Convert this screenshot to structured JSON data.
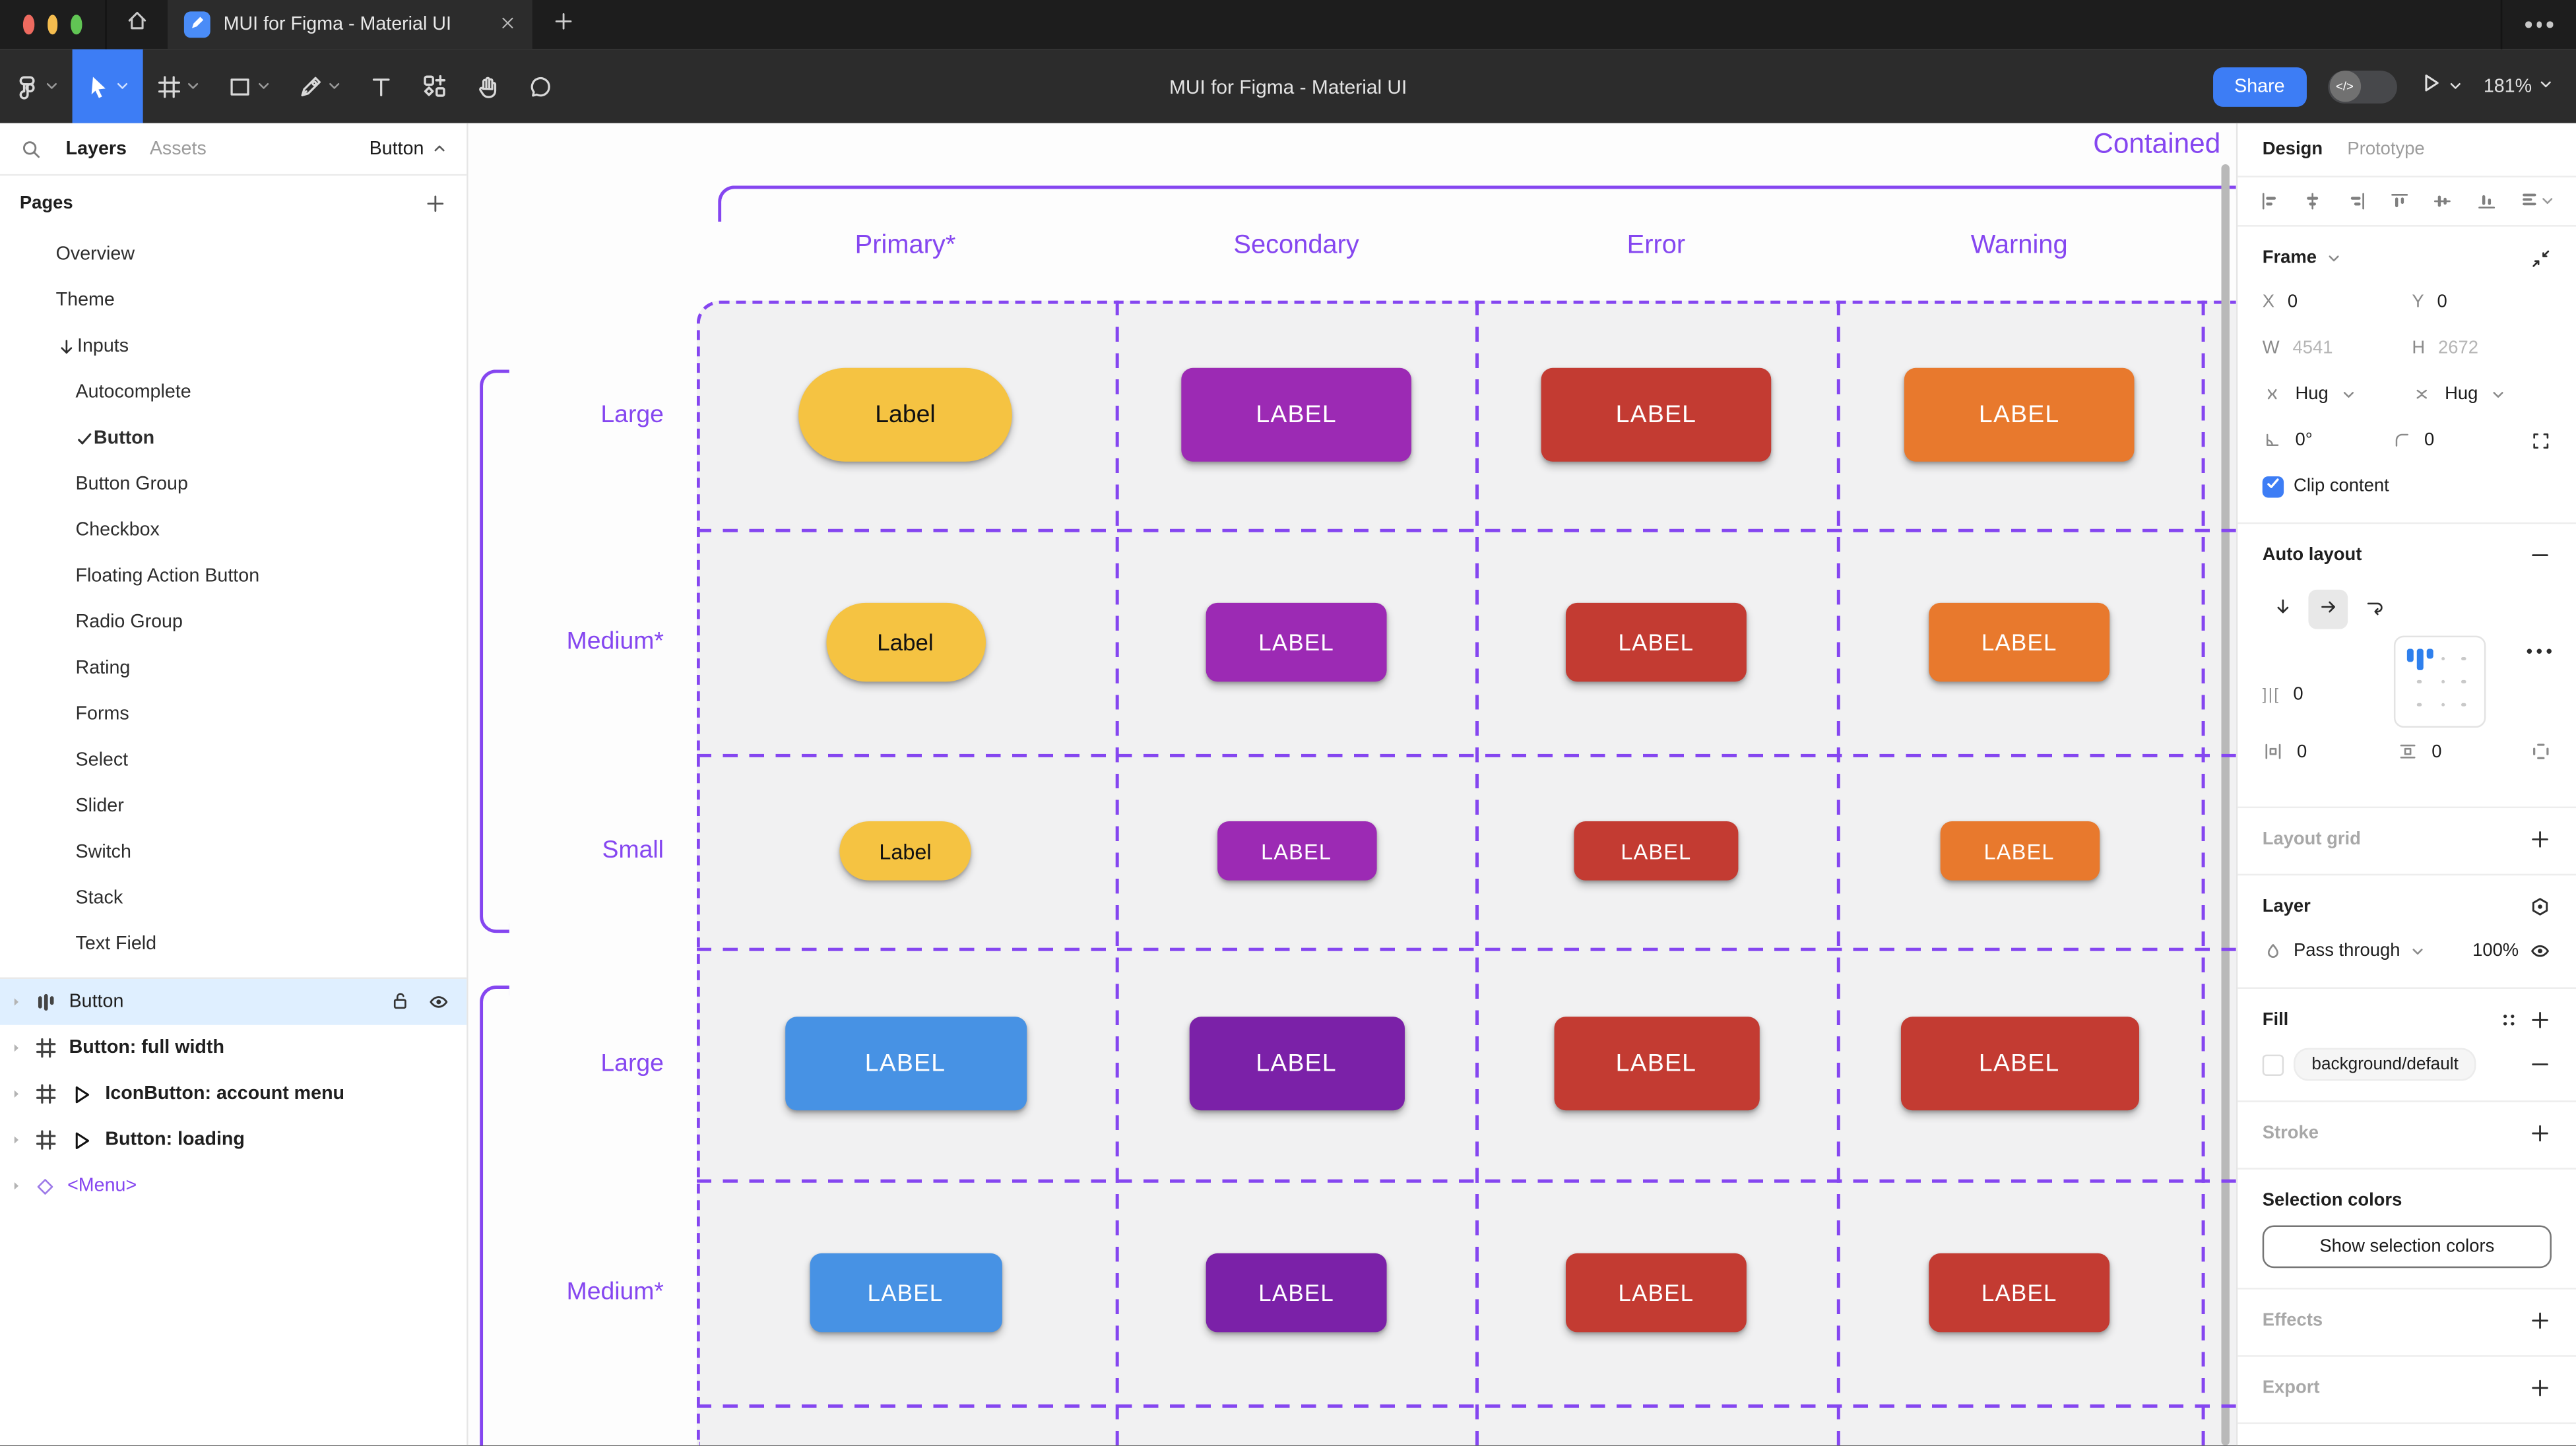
{
  "app": {
    "tab_title": "MUI for Figma - Material UI",
    "doc_title": "MUI for Figma - Material UI",
    "share_label": "Share",
    "zoom_level": "181%"
  },
  "sidebar": {
    "tab_layers": "Layers",
    "tab_assets": "Assets",
    "page_selector": "Button",
    "pages_header": "Pages",
    "pages": [
      {
        "label": "Overview",
        "level": 1
      },
      {
        "label": "Theme",
        "level": 1
      },
      {
        "label": "Inputs",
        "level": 1,
        "arrow": true
      },
      {
        "label": "Autocomplete",
        "level": 2
      },
      {
        "label": "Button",
        "level": 2,
        "checked": true,
        "active": true
      },
      {
        "label": "Button Group",
        "level": 2
      },
      {
        "label": "Checkbox",
        "level": 2
      },
      {
        "label": "Floating Action Button",
        "level": 2
      },
      {
        "label": "Radio Group",
        "level": 2
      },
      {
        "label": "Rating",
        "level": 2
      },
      {
        "label": "Forms",
        "level": 2
      },
      {
        "label": "Select",
        "level": 2
      },
      {
        "label": "Slider",
        "level": 2
      },
      {
        "label": "Switch",
        "level": 2
      },
      {
        "label": "Stack",
        "level": 2
      },
      {
        "label": "Text Field",
        "level": 2
      }
    ],
    "layers": [
      {
        "label": "Button",
        "icon": "auto-layout",
        "selected": true
      },
      {
        "label": "Button: full width",
        "icon": "frame",
        "bold": true
      },
      {
        "label": "IconButton: account menu",
        "icon": "frame",
        "bold": true,
        "play": true
      },
      {
        "label": "Button: loading",
        "icon": "frame",
        "bold": true,
        "play": true
      },
      {
        "label": "<Menu>",
        "icon": "instance",
        "instance": true
      }
    ]
  },
  "canvas": {
    "frame_label": "Contained",
    "accent_color": "#8546F0",
    "columns": [
      "Primary*",
      "Secondary",
      "Error",
      "Warning"
    ],
    "rows": [
      {
        "label": "Large",
        "buttons": [
          {
            "text": "Label",
            "bg": "#F5C342",
            "fg": "#111111",
            "pill": true,
            "w": 130,
            "h": 57
          },
          {
            "text": "LABEL",
            "bg": "#9C2AB4",
            "fg": "#FFFFFF",
            "w": 140,
            "h": 57
          },
          {
            "text": "LABEL",
            "bg": "#C33B32",
            "fg": "#FFFFFF",
            "w": 140,
            "h": 57
          },
          {
            "text": "LABEL",
            "bg": "#E8792D",
            "fg": "#FFFFFF",
            "w": 140,
            "h": 57
          }
        ]
      },
      {
        "label": "Medium*",
        "buttons": [
          {
            "text": "Label",
            "bg": "#F5C342",
            "fg": "#111111",
            "pill": true,
            "w": 97,
            "h": 48
          },
          {
            "text": "LABEL",
            "bg": "#9C2AB4",
            "fg": "#FFFFFF",
            "w": 110,
            "h": 48
          },
          {
            "text": "LABEL",
            "bg": "#C33B32",
            "fg": "#FFFFFF",
            "w": 110,
            "h": 48
          },
          {
            "text": "LABEL",
            "bg": "#E8792D",
            "fg": "#FFFFFF",
            "w": 110,
            "h": 48
          }
        ]
      },
      {
        "label": "Small",
        "buttons": [
          {
            "text": "Label",
            "bg": "#F5C342",
            "fg": "#111111",
            "pill": true,
            "w": 80,
            "h": 36
          },
          {
            "text": "LABEL",
            "bg": "#9C2AB4",
            "fg": "#FFFFFF",
            "w": 97,
            "h": 36
          },
          {
            "text": "LABEL",
            "bg": "#C33B32",
            "fg": "#FFFFFF",
            "w": 100,
            "h": 36
          },
          {
            "text": "LABEL",
            "bg": "#E8792D",
            "fg": "#FFFFFF",
            "w": 97,
            "h": 36
          }
        ]
      },
      {
        "label": "Large",
        "buttons": [
          {
            "text": "LABEL",
            "bg": "#4792E4",
            "fg": "#FFFFFF",
            "w": 147,
            "h": 57
          },
          {
            "text": "LABEL",
            "bg": "#7B21A8",
            "fg": "#FFFFFF",
            "w": 131,
            "h": 57
          },
          {
            "text": "LABEL",
            "bg": "#C33B32",
            "fg": "#FFFFFF",
            "w": 125,
            "h": 57
          },
          {
            "text": "LABEL",
            "bg": "#C33B32",
            "fg": "#FFFFFF",
            "w": 145,
            "h": 57
          }
        ]
      },
      {
        "label": "Medium*",
        "buttons": [
          {
            "text": "LABEL",
            "bg": "#4792E4",
            "fg": "#FFFFFF",
            "w": 117,
            "h": 48
          },
          {
            "text": "LABEL",
            "bg": "#7B21A8",
            "fg": "#FFFFFF",
            "w": 110,
            "h": 48
          },
          {
            "text": "LABEL",
            "bg": "#C33B32",
            "fg": "#FFFFFF",
            "w": 110,
            "h": 48
          },
          {
            "text": "LABEL",
            "bg": "#C33B32",
            "fg": "#FFFFFF",
            "w": 110,
            "h": 48
          }
        ]
      }
    ]
  },
  "panel": {
    "tab_design": "Design",
    "tab_prototype": "Prototype",
    "frame": {
      "title": "Frame",
      "x_label": "X",
      "x_value": "0",
      "y_label": "Y",
      "y_value": "0",
      "w_label": "W",
      "w_value": "4541",
      "h_label": "H",
      "h_value": "2672",
      "hug_h": "Hug",
      "hug_v": "Hug",
      "rotation": "0°",
      "corner_radius": "0",
      "clip_label": "Clip content"
    },
    "auto_layout": {
      "title": "Auto layout",
      "gap_value": "0",
      "pad_h_value": "0",
      "pad_v_value": "0"
    },
    "layout_grid": {
      "title": "Layout grid"
    },
    "layer": {
      "title": "Layer",
      "blend_mode": "Pass through",
      "opacity": "100%"
    },
    "fill": {
      "title": "Fill",
      "style_name": "background/default"
    },
    "stroke": {
      "title": "Stroke"
    },
    "selection_colors": {
      "title": "Selection colors",
      "show_button": "Show selection colors"
    },
    "effects": {
      "title": "Effects"
    },
    "export": {
      "title": "Export"
    }
  }
}
